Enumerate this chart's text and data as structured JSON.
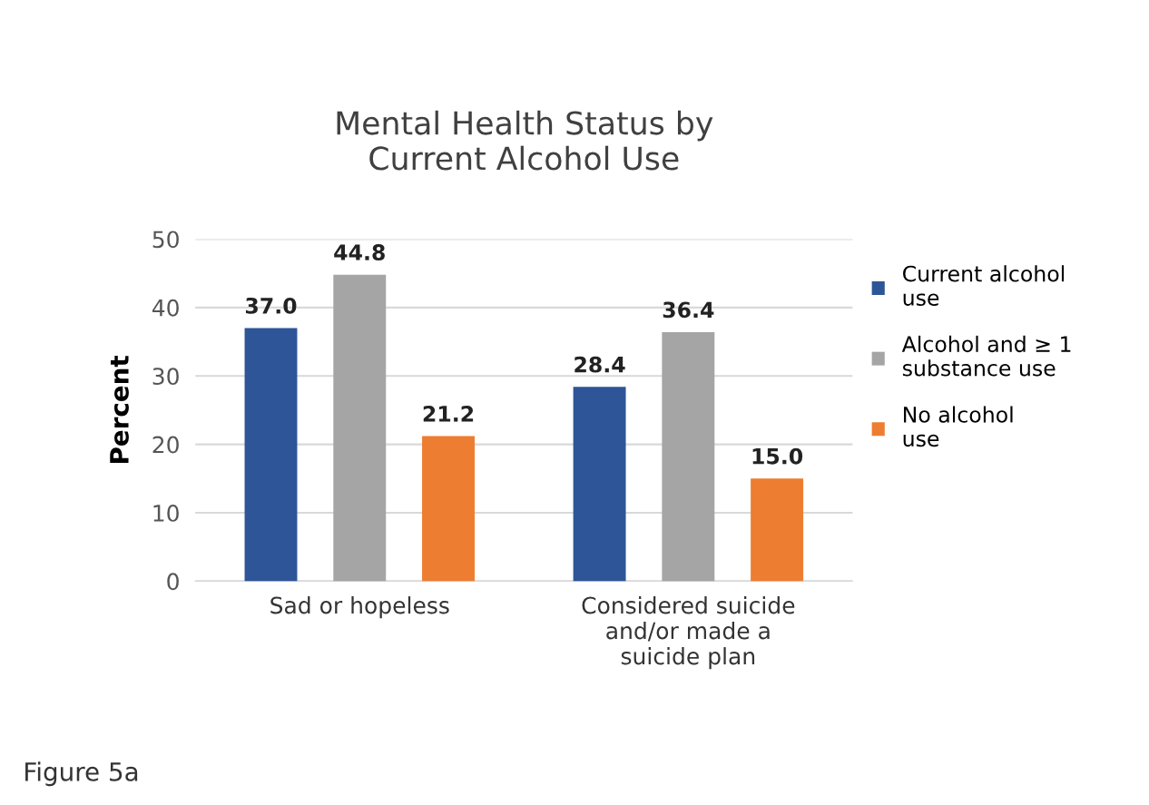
{
  "chart_data": {
    "type": "bar",
    "title": "Mental Health Status by\nCurrent Alcohol Use",
    "ylabel": "Percent",
    "categories": [
      "Sad or hopeless",
      "Considered suicide\nand/or made a\nsuicide plan"
    ],
    "series": [
      {
        "name": "Current alcohol\nuse",
        "color": "#2e5597",
        "values": [
          37.0,
          28.4
        ],
        "value_labels": [
          "37.0",
          "28.4"
        ]
      },
      {
        "name": "Alcohol and ≥ 1\nsubstance use",
        "color": "#a5a5a5",
        "values": [
          44.8,
          36.4
        ],
        "value_labels": [
          "44.8",
          "36.4"
        ]
      },
      {
        "name": "No alcohol\nuse",
        "color": "#ed7d31",
        "values": [
          21.2,
          15.0
        ],
        "value_labels": [
          "21.2",
          "15.0"
        ]
      }
    ],
    "ylim": [
      0,
      50
    ],
    "yticks": [
      0,
      10,
      20,
      30,
      40,
      50
    ],
    "grid": "y",
    "legend": "right",
    "annotations": [
      "Figure 5a"
    ]
  }
}
